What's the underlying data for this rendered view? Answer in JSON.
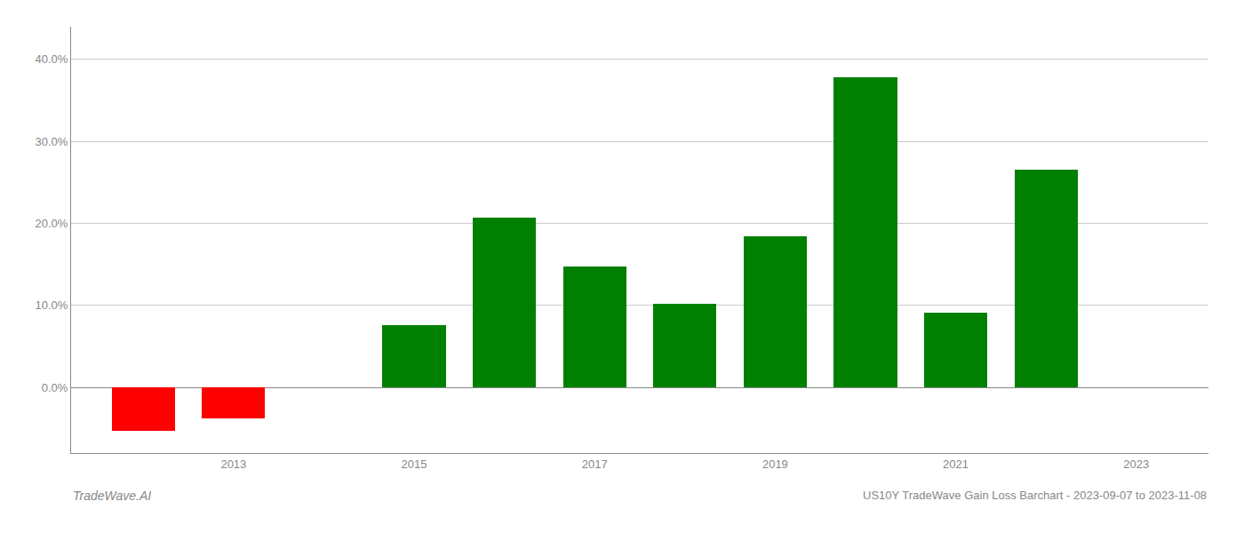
{
  "chart_data": {
    "type": "bar",
    "title": "US10Y TradeWave Gain Loss Barchart - 2023-09-07 to 2023-11-08",
    "annotations": [
      "TradeWave.AI"
    ],
    "x": [
      2012,
      2013,
      2015,
      2016,
      2017,
      2018,
      2019,
      2020,
      2021,
      2022
    ],
    "values": [
      -0.053,
      -0.038,
      0.076,
      0.207,
      0.148,
      0.102,
      0.184,
      0.378,
      0.091,
      0.266
    ],
    "colors": [
      "#ff0000",
      "#ff0000",
      "#008000",
      "#008000",
      "#008000",
      "#008000",
      "#008000",
      "#008000",
      "#008000",
      "#008000"
    ],
    "xlim": [
      2011.2,
      2023.8
    ],
    "xticks": [
      2013,
      2015,
      2017,
      2019,
      2021,
      2023
    ],
    "ylim": [
      -0.08,
      0.44
    ],
    "yticks": [
      {
        "value": 0.0,
        "label": "0.0%"
      },
      {
        "value": 0.1,
        "label": "10.0%"
      },
      {
        "value": 0.2,
        "label": "20.0%"
      },
      {
        "value": 0.3,
        "label": "30.0%"
      },
      {
        "value": 0.4,
        "label": "40.0%"
      }
    ],
    "grid": true
  }
}
